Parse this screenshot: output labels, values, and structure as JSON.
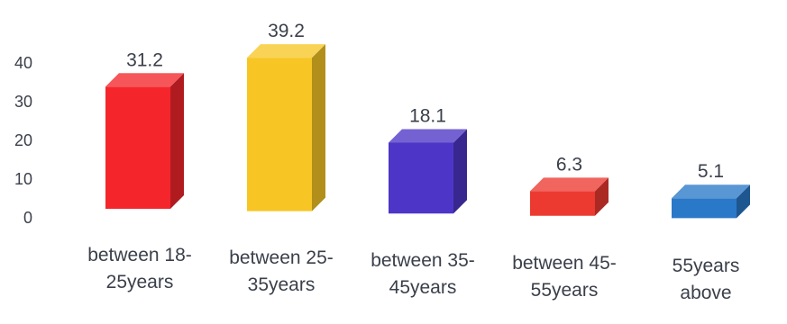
{
  "chart_data": {
    "type": "bar",
    "title": "",
    "xlabel": "",
    "ylabel": "",
    "ylim": [
      0,
      40
    ],
    "yticks": [
      "0",
      "10",
      "20",
      "30",
      "40"
    ],
    "grid": false,
    "categories": [
      [
        "between 18-",
        "25years"
      ],
      [
        "between 25-",
        "35years"
      ],
      [
        "between 35-",
        "45years"
      ],
      [
        "between 45-",
        "55years"
      ],
      [
        "55years",
        "above"
      ]
    ],
    "values": [
      31.2,
      39.2,
      18.1,
      6.3,
      5.1
    ],
    "value_labels": [
      "31.2",
      "39.2",
      "18.1",
      "6.3",
      "5.1"
    ],
    "colors": [
      "#f4262c",
      "#f7c625",
      "#4d36c7",
      "#ec3a30",
      "#2a78c8"
    ]
  }
}
